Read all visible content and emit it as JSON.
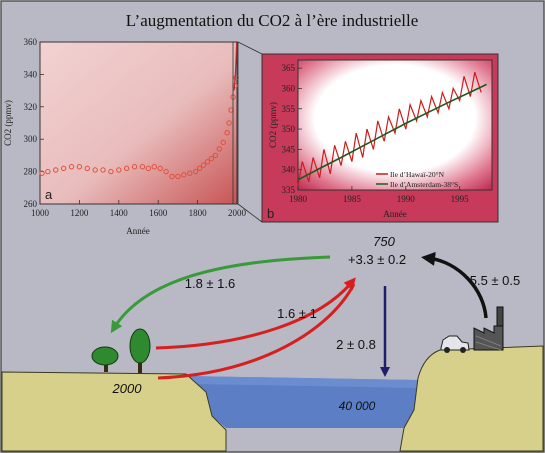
{
  "title": "L’augmentation du CO2 à l’ère industrielle",
  "colors": {
    "frame_bg": "#b8b9c5",
    "land": "#d7d08a",
    "sea": "#5b7ec4",
    "deep_sea": "#4d6fb5",
    "green_arrow": "#3a9a3a",
    "red_arrow": "#d62020",
    "navy_arrow": "#1e1e6a",
    "black_arrow": "#111111",
    "plot_a_bg": "#e6b6b6",
    "plot_b_bg": "#c83a5a",
    "series_red": "#cc1c1c",
    "series_green": "#1c5a1c"
  },
  "panel_a": {
    "label": "a",
    "xlabel": "Année",
    "ylabel": "CO2 (ppmv)"
  },
  "panel_b": {
    "label": "b",
    "xlabel": "Année",
    "ylabel": "CO2 (ppmv)",
    "legend": [
      "Ile d’Hawaï-20°N",
      "Ile d’Amsterdam-38°S"
    ]
  },
  "chart_data": [
    {
      "type": "scatter",
      "panel": "a",
      "xlabel": "Année",
      "ylabel": "CO2 (ppmv)",
      "xlim": [
        1000,
        2000
      ],
      "ylim": [
        260,
        360
      ],
      "xticks": [
        1000,
        1200,
        1400,
        1600,
        1800,
        2000
      ],
      "yticks": [
        260,
        280,
        300,
        320,
        340,
        360
      ],
      "x": [
        1010,
        1040,
        1080,
        1120,
        1160,
        1200,
        1240,
        1280,
        1320,
        1360,
        1400,
        1440,
        1480,
        1520,
        1550,
        1580,
        1610,
        1640,
        1670,
        1700,
        1730,
        1760,
        1790,
        1810,
        1830,
        1850,
        1870,
        1890,
        1910,
        1930,
        1950,
        1960,
        1970,
        1980,
        1990,
        1995
      ],
      "y": [
        279,
        280,
        281,
        282,
        283,
        283,
        282,
        281,
        281,
        280,
        281,
        282,
        283,
        283,
        282,
        283,
        282,
        280,
        277,
        277,
        278,
        279,
        280,
        282,
        284,
        286,
        288,
        290,
        294,
        298,
        304,
        310,
        318,
        326,
        333,
        338
      ]
    },
    {
      "type": "line",
      "panel": "b",
      "xlabel": "Année",
      "ylabel": "CO2 (ppmv)",
      "xlim": [
        1980,
        1998
      ],
      "ylim": [
        335,
        367
      ],
      "xticks": [
        1980,
        1985,
        1990,
        1995
      ],
      "yticks": [
        335,
        340,
        345,
        350,
        355,
        360,
        365
      ],
      "legend_position": "bottom-right",
      "series": [
        {
          "name": "Ile d’Hawaï-20°N",
          "x": [
            1980.0,
            1980.4,
            1981.0,
            1981.4,
            1982.0,
            1982.4,
            1983.0,
            1983.4,
            1984.0,
            1984.4,
            1985.0,
            1985.4,
            1986.0,
            1986.4,
            1987.0,
            1987.4,
            1988.0,
            1988.4,
            1989.0,
            1989.4,
            1990.0,
            1990.4,
            1991.0,
            1991.4,
            1992.0,
            1992.4,
            1993.0,
            1993.4,
            1994.0,
            1994.4,
            1995.0,
            1995.4,
            1996.0,
            1996.4,
            1997.0
          ],
          "y": [
            336,
            342,
            337,
            343,
            338,
            345,
            339,
            346,
            341,
            347,
            342,
            349,
            343,
            350,
            345,
            352,
            347,
            353,
            349,
            355,
            350,
            356,
            352,
            357,
            353,
            358,
            354,
            359,
            355,
            360,
            357,
            363,
            358,
            364,
            359
          ]
        },
        {
          "name": "Ile d’Amsterdam-38°S",
          "x": [
            1980,
            1982,
            1984,
            1986,
            1988,
            1990,
            1992,
            1994,
            1996,
            1997.5
          ],
          "y": [
            337.5,
            340.3,
            343.0,
            345.8,
            348.6,
            351.4,
            354.0,
            356.6,
            359.1,
            361.0
          ]
        }
      ]
    }
  ],
  "diagram": {
    "atmosphere_stock": "750",
    "atmosphere_change": "+3.3 ± 0.2",
    "land_stock": "2000",
    "ocean_stock": "40 000",
    "flux_atmosphere_to_land": "1.8 ± 1.6",
    "flux_land_to_atmosphere": "1.6 ± 1",
    "flux_atmosphere_to_ocean": "2 ± 0.8",
    "flux_industry_to_atmosphere": "5.5 ± 0.5"
  }
}
